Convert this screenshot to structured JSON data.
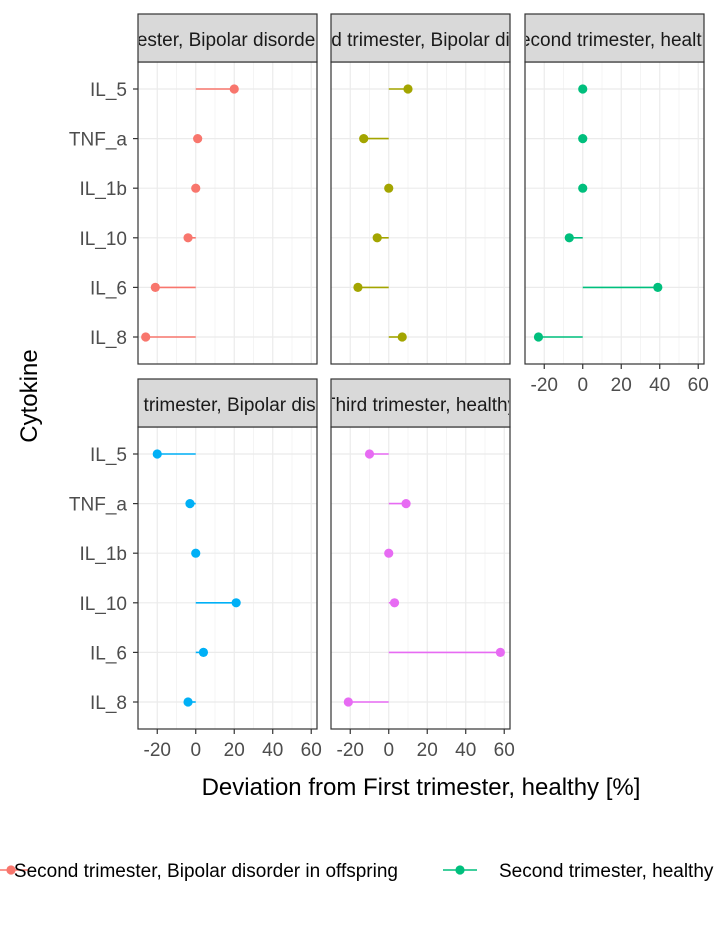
{
  "chart_data": {
    "type": "dot-lollipop",
    "xlabel": "Deviation from First trimester, healthy [%]",
    "ylabel": "Cytokine",
    "categories": [
      "IL_5",
      "TNF_a",
      "IL_1b",
      "IL_10",
      "IL_6",
      "IL_8"
    ],
    "xlim": [
      -30,
      63
    ],
    "xticks": [
      -20,
      0,
      20,
      40,
      60
    ],
    "xtick_labels": [
      "-20",
      "0",
      "20",
      "40",
      "60"
    ],
    "grid": true,
    "legend_position": "bottom",
    "panels": [
      {
        "strip_label": "Second trimester, Bipolar disorder in offspring",
        "color": "#F8766D",
        "values": [
          20,
          1,
          0,
          -4,
          -21,
          -26
        ]
      },
      {
        "strip_label": "Second trimester, Bipolar disorder",
        "color": "#A3A500",
        "values": [
          10,
          -13,
          0,
          -6,
          -16,
          7
        ]
      },
      {
        "strip_label": "Second trimester, healthy",
        "color": "#00BF7D",
        "values": [
          0,
          0,
          0,
          -7,
          39,
          -23
        ]
      },
      {
        "strip_label": "Third trimester, Bipolar disorder",
        "color": "#00B0F6",
        "values": [
          -20,
          -3,
          0,
          21,
          4,
          -4
        ]
      },
      {
        "strip_label": "Third trimester, healthy",
        "color": "#E76BF3",
        "values": [
          -10,
          9,
          0,
          3,
          58,
          -21
        ]
      }
    ],
    "legend": [
      {
        "label": "Second trimester, Bipolar disorder in offspring",
        "color": "#F8766D"
      },
      {
        "label": "Second trimester, healthy",
        "color": "#00BF7D"
      }
    ]
  }
}
